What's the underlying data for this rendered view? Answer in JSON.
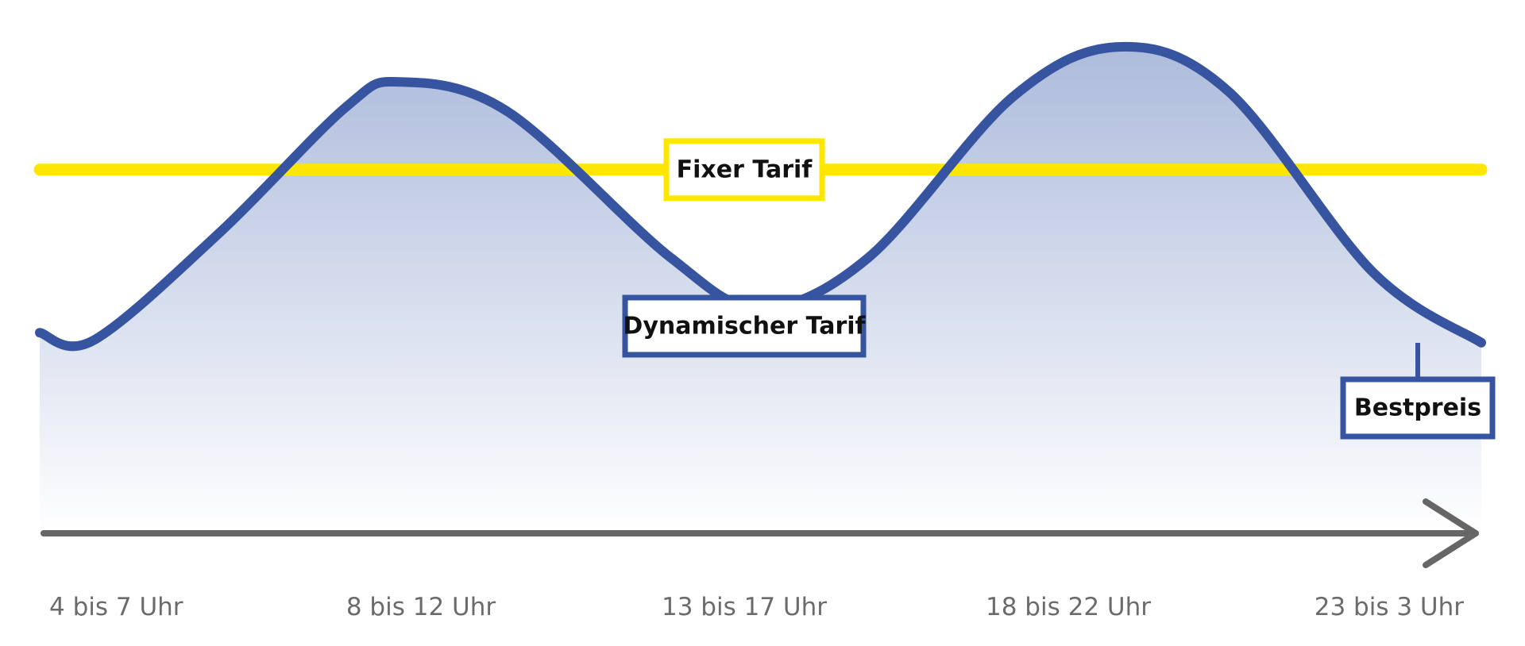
{
  "chart_data": {
    "type": "line",
    "title": "",
    "xlabel": "",
    "ylabel": "",
    "categories": [
      "4 bis 7 Uhr",
      "8 bis 12 Uhr",
      "13 bis 17 Uhr",
      "18 bis 22 Uhr",
      "23 bis 3 Uhr"
    ],
    "ylim": [
      0,
      100
    ],
    "series": [
      {
        "name": "Dynamischer Tarif",
        "color": "#36549f",
        "fill": "gradient",
        "values": [
          40,
          90,
          45,
          97,
          38
        ],
        "profile_x": [
          0,
          0.15,
          0.5,
          0.85,
          1.0,
          1.3,
          1.75,
          2.0,
          2.3,
          2.7,
          3.0,
          3.3,
          3.7,
          4.0
        ],
        "profile_y": [
          40,
          38.5,
          60,
          85,
          90,
          84,
          55,
          45,
          55,
          87,
          97,
          88,
          52,
          38
        ]
      },
      {
        "name": "Fixer Tarif",
        "color": "#ffe600",
        "values": [
          72.5,
          72.5,
          72.5,
          72.5,
          72.5
        ]
      }
    ],
    "annotations": [
      {
        "text": "Fixer Tarif",
        "series": "Fixer Tarif",
        "x": 2.0,
        "border": "#ffe600"
      },
      {
        "text": "Dynamischer Tarif",
        "series": "Dynamischer Tarif",
        "x": 2.0,
        "border": "#36549f"
      },
      {
        "text": "Bestpreis",
        "series": "Dynamischer Tarif",
        "x": 3.95,
        "border": "#36549f"
      }
    ],
    "axis": {
      "color": "#666666",
      "arrow": "right"
    },
    "grid": false,
    "legend": "none"
  }
}
